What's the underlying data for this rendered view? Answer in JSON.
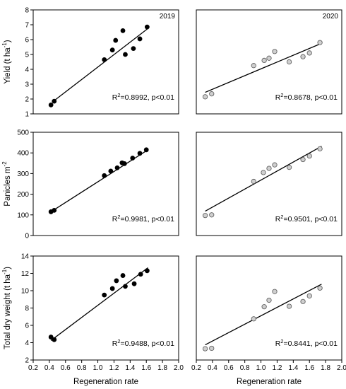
{
  "chart_data": [
    {
      "type": "scatter",
      "year": "2019",
      "ylabel": "Yield (t ha-1)",
      "ylim": [
        1,
        8
      ],
      "yticks": [
        1,
        2,
        3,
        4,
        5,
        6,
        7,
        8
      ],
      "xlim": [
        0.2,
        2.0
      ],
      "xticks": [
        0.2,
        0.4,
        0.6,
        0.8,
        1.0,
        1.2,
        1.4,
        1.6,
        1.8,
        2.0
      ],
      "annotation": {
        "r2": "=0.8992, p<0.01"
      },
      "fit": [
        [
          0.45,
          1.85
        ],
        [
          1.62,
          6.75
        ]
      ],
      "x": [
        0.42,
        0.46,
        1.08,
        1.18,
        1.22,
        1.31,
        1.34,
        1.44,
        1.52,
        1.61
      ],
      "y": [
        1.6,
        1.85,
        4.65,
        5.3,
        5.95,
        6.6,
        5.0,
        5.4,
        6.05,
        6.85
      ],
      "marker": "filled"
    },
    {
      "type": "scatter",
      "year": "2020",
      "ylabel": "",
      "ylim": [
        1,
        8
      ],
      "xlim": [
        0.2,
        2.0
      ],
      "xticks": [
        0.2,
        0.4,
        0.6,
        0.8,
        1.0,
        1.2,
        1.4,
        1.6,
        1.8,
        2.0
      ],
      "annotation": {
        "r2": "=0.8678, p<0.01"
      },
      "fit": [
        [
          0.31,
          2.45
        ],
        [
          1.75,
          5.75
        ]
      ],
      "x": [
        0.31,
        0.39,
        0.91,
        1.04,
        1.1,
        1.17,
        1.35,
        1.52,
        1.6,
        1.73
      ],
      "y": [
        2.15,
        2.35,
        4.25,
        4.6,
        4.75,
        5.2,
        4.5,
        4.85,
        5.1,
        5.8
      ],
      "marker": "open"
    },
    {
      "type": "scatter",
      "year": "",
      "ylabel": "Panicles m-2",
      "ylim": [
        0,
        500
      ],
      "yticks": [
        0,
        100,
        200,
        300,
        400,
        500
      ],
      "xlim": [
        0.2,
        2.0
      ],
      "xticks": [
        0.2,
        0.4,
        0.6,
        0.8,
        1.0,
        1.2,
        1.4,
        1.6,
        1.8,
        2.0
      ],
      "annotation": {
        "r2": "=0.9981, p<0.01"
      },
      "fit": [
        [
          0.42,
          115
        ],
        [
          1.62,
          415
        ]
      ],
      "x": [
        0.42,
        0.46,
        1.08,
        1.16,
        1.24,
        1.3,
        1.33,
        1.43,
        1.52,
        1.6
      ],
      "y": [
        115,
        122,
        290,
        312,
        328,
        352,
        348,
        375,
        398,
        415
      ],
      "marker": "filled"
    },
    {
      "type": "scatter",
      "year": "",
      "ylabel": "",
      "ylim": [
        0,
        500
      ],
      "xlim": [
        0.2,
        2.0
      ],
      "xticks": [
        0.2,
        0.4,
        0.6,
        0.8,
        1.0,
        1.2,
        1.4,
        1.6,
        1.8,
        2.0
      ],
      "annotation": {
        "r2": "=0.9501, p<0.01"
      },
      "fit": [
        [
          0.31,
          118
        ],
        [
          1.75,
          432
        ]
      ],
      "x": [
        0.31,
        0.39,
        0.91,
        1.03,
        1.1,
        1.17,
        1.35,
        1.52,
        1.6,
        1.73
      ],
      "y": [
        97,
        100,
        262,
        305,
        325,
        342,
        330,
        368,
        385,
        420
      ],
      "marker": "open"
    },
    {
      "type": "scatter",
      "year": "",
      "ylabel": "Total dry weight (t ha-1)",
      "ylim": [
        2,
        14
      ],
      "yticks": [
        2,
        4,
        6,
        8,
        10,
        12,
        14
      ],
      "xlim": [
        0.2,
        2.0
      ],
      "xticks": [
        0.2,
        0.4,
        0.6,
        0.8,
        1.0,
        1.2,
        1.4,
        1.6,
        1.8,
        2.0
      ],
      "xlabel": "Regeneration rate",
      "annotation": {
        "r2": "=0.9488, p<0.01"
      },
      "fit": [
        [
          0.42,
          4.25
        ],
        [
          1.62,
          12.65
        ]
      ],
      "x": [
        0.42,
        0.46,
        1.08,
        1.18,
        1.23,
        1.31,
        1.34,
        1.45,
        1.53,
        1.61
      ],
      "y": [
        4.65,
        4.35,
        9.5,
        10.25,
        11.15,
        11.75,
        10.5,
        10.8,
        11.9,
        12.3
      ],
      "marker": "filled"
    },
    {
      "type": "scatter",
      "year": "",
      "ylabel": "",
      "ylim": [
        2,
        14
      ],
      "xlim": [
        0.2,
        2.0
      ],
      "xticks": [
        0.2,
        0.4,
        0.6,
        0.8,
        1.0,
        1.2,
        1.4,
        1.6,
        1.8,
        2.0
      ],
      "xlabel": "Regeneration rate",
      "annotation": {
        "r2": "=0.8441, p<0.01"
      },
      "fit": [
        [
          0.31,
          3.75
        ],
        [
          1.75,
          10.75
        ]
      ],
      "x": [
        0.31,
        0.39,
        0.91,
        1.04,
        1.1,
        1.17,
        1.35,
        1.52,
        1.6,
        1.73
      ],
      "y": [
        3.3,
        3.35,
        6.75,
        8.15,
        8.9,
        9.9,
        8.2,
        8.75,
        9.4,
        10.3
      ],
      "marker": "open"
    }
  ]
}
